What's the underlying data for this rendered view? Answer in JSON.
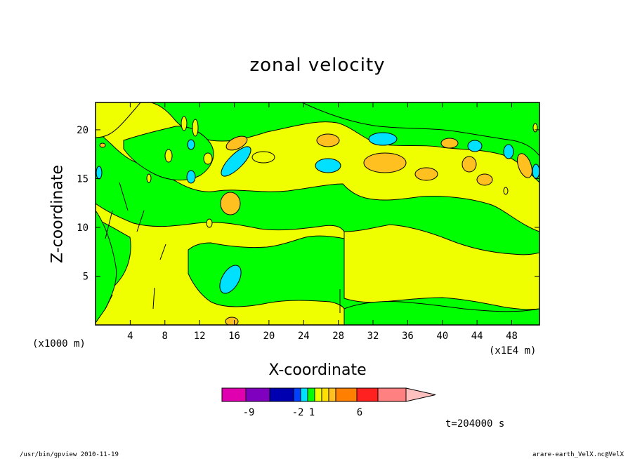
{
  "chart_data": {
    "type": "heatmap",
    "title": "zonal velocity",
    "xlabel": "X-coordinate",
    "ylabel": "Z-coordinate",
    "x_unit": "(x1E4 m)",
    "y_unit": "(x1000 m)",
    "x_ticks": [
      4,
      8,
      12,
      16,
      20,
      24,
      28,
      32,
      36,
      40,
      44,
      48
    ],
    "y_ticks": [
      5,
      10,
      15,
      20
    ],
    "xlim": [
      0,
      51.2
    ],
    "ylim": [
      0,
      22.8
    ],
    "time_label": "t=204000 s",
    "colorbar": {
      "colors": [
        "#e000b0",
        "#8000c0",
        "#0000b0",
        "#0040ff",
        "#00e0ff",
        "#00ff00",
        "#f0ff00",
        "#ffe000",
        "#ffc020",
        "#ff8000",
        "#ff2020",
        "#ff8080",
        "#ffc0c0"
      ],
      "tick_labels": [
        "-9",
        "-2",
        "1",
        "6"
      ]
    },
    "regions": [
      {
        "level": "green",
        "x": [
          0,
          51.2
        ],
        "z": [
          0,
          22.8
        ]
      },
      {
        "level": "yellow",
        "x": [
          2,
          51.2
        ],
        "z": [
          10,
          20
        ]
      },
      {
        "level": "yellow",
        "x": [
          2,
          28
        ],
        "z": [
          0,
          9
        ]
      },
      {
        "level": "yellow",
        "x": [
          28,
          51.2
        ],
        "z": [
          3,
          11
        ]
      },
      {
        "level": "cyan",
        "x": [
          14,
          17
        ],
        "z": [
          3,
          6
        ]
      },
      {
        "level": "cyan",
        "x": [
          14,
          19
        ],
        "z": [
          15,
          18.5
        ]
      },
      {
        "level": "orange",
        "x": [
          14,
          17
        ],
        "z": [
          11,
          13
        ]
      },
      {
        "level": "orange",
        "x": [
          30,
          35
        ],
        "z": [
          15,
          17.5
        ]
      }
    ]
  },
  "footer": {
    "left": "/usr/bin/gpview  2010-11-19",
    "right": "arare-earth_VelX.nc@VelX"
  }
}
